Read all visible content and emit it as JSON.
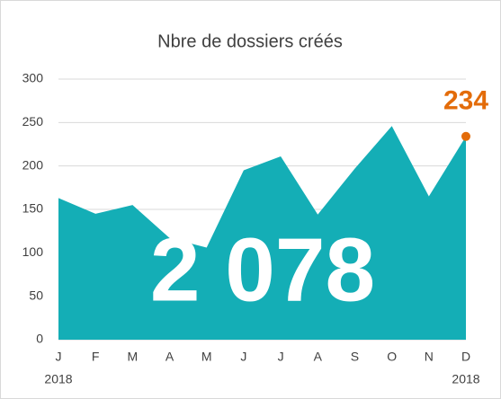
{
  "chart_data": {
    "type": "area",
    "title": "Nbre de dossiers créés",
    "categories": [
      "J",
      "F",
      "M",
      "A",
      "M",
      "J",
      "J",
      "A",
      "S",
      "O",
      "N",
      "D"
    ],
    "categories2": [
      "2018",
      null,
      null,
      null,
      null,
      null,
      null,
      null,
      null,
      null,
      null,
      "2018"
    ],
    "values": [
      163,
      145,
      155,
      117,
      106,
      195,
      211,
      144,
      197,
      246,
      165,
      234
    ],
    "value_labels": [
      null,
      null,
      null,
      null,
      null,
      null,
      null,
      null,
      null,
      null,
      null,
      "234"
    ],
    "annotation": "2 078",
    "color": "#14aeb6",
    "label_color": "#e36c0a",
    "ylim": [
      0,
      300
    ],
    "yticks": [
      0,
      50,
      100,
      150,
      200,
      250,
      300
    ],
    "grid": true
  }
}
